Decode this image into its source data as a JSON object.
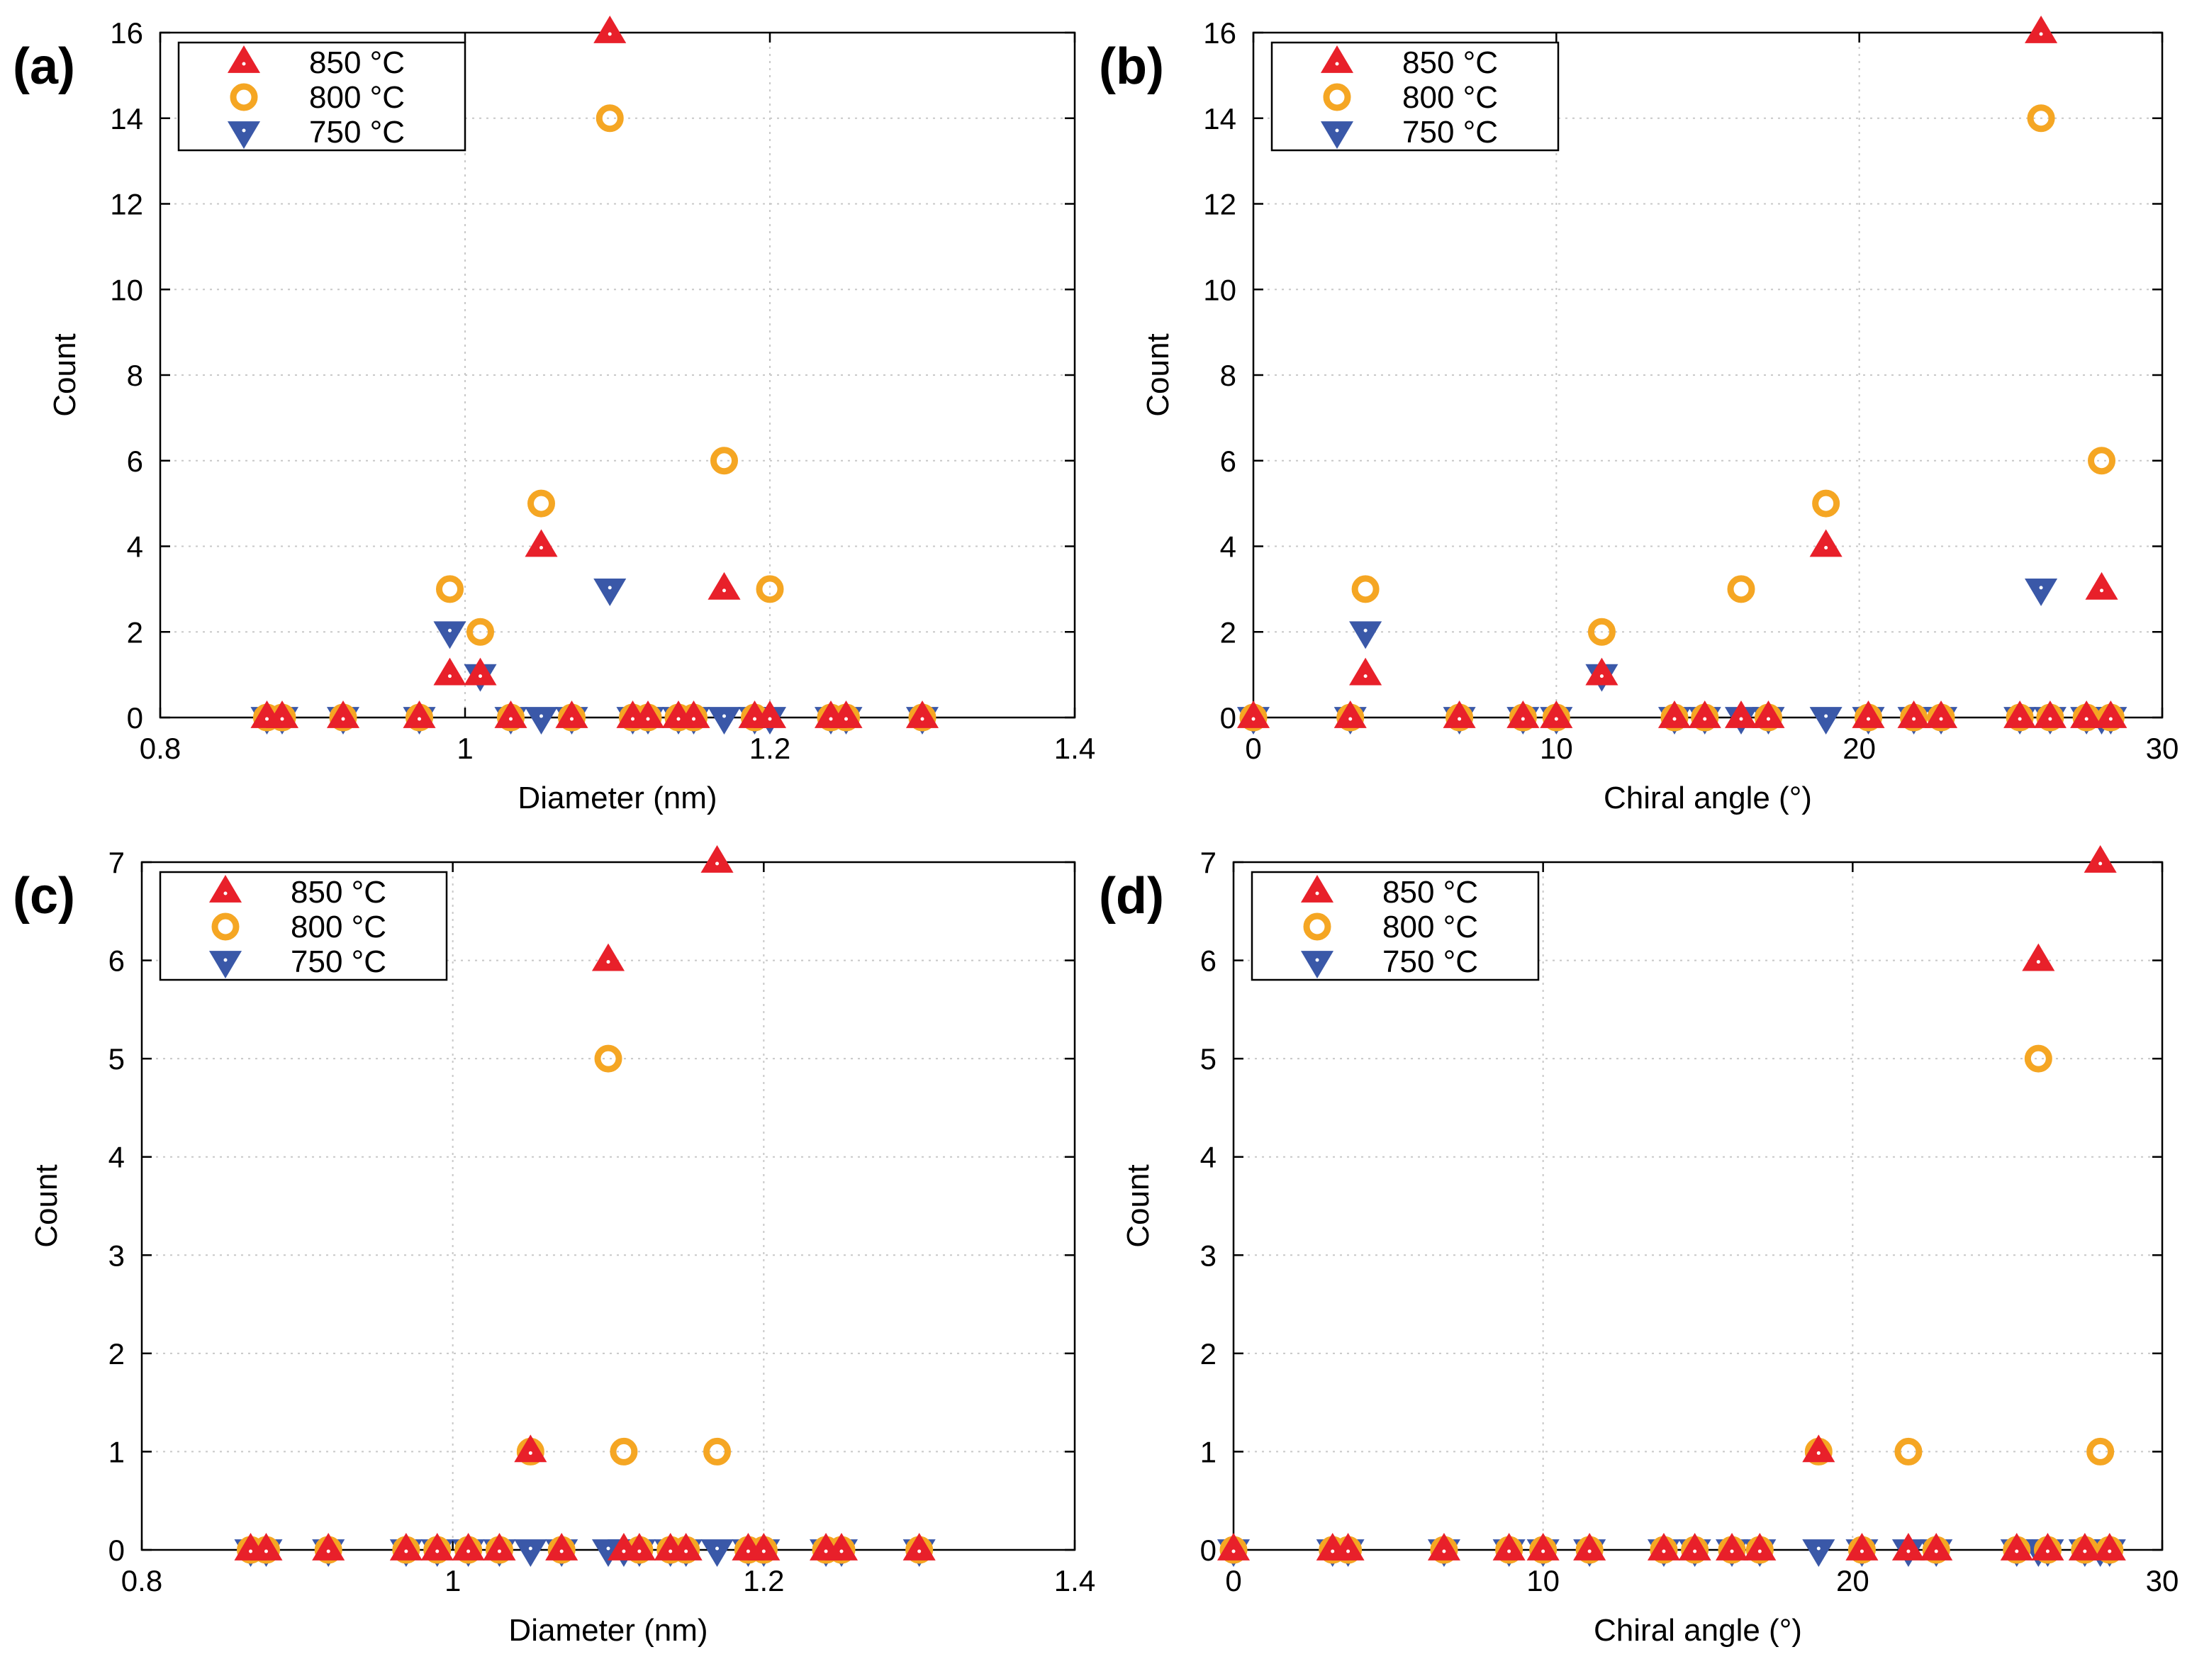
{
  "figure": {
    "colors": {
      "s850": "#e8202a",
      "s800": "#f5a623",
      "s750": "#3a58a8",
      "grid": "#c8c8c8",
      "frame": "#000000"
    }
  },
  "chart_data": [
    {
      "type": "scatter",
      "panel_label": "(a)",
      "xlabel": "Diameter (nm)",
      "ylabel": "Count",
      "xlim": [
        0.8,
        1.4
      ],
      "ylim": [
        0,
        16
      ],
      "xticks": [
        0.8,
        1,
        1.2,
        1.4
      ],
      "xtick_labels": [
        "0.8",
        "1",
        "1.2",
        "1.4"
      ],
      "yticks": [
        0,
        2,
        4,
        6,
        8,
        10,
        12,
        14,
        16
      ],
      "ytick_labels": [
        "0",
        "2",
        "4",
        "6",
        "8",
        "10",
        "12",
        "14",
        "16"
      ],
      "legend": [
        "850 °C",
        "800 °C",
        "750 °C"
      ],
      "legend_position": "top-left",
      "series": [
        {
          "name": "850 °C",
          "marker": "triangle-up",
          "x": [
            0.87,
            0.88,
            0.92,
            0.97,
            0.99,
            1.01,
            1.03,
            1.05,
            1.07,
            1.095,
            1.11,
            1.12,
            1.14,
            1.15,
            1.17,
            1.19,
            1.2,
            1.24,
            1.25,
            1.3
          ],
          "y": [
            0,
            0,
            0,
            0,
            1,
            1,
            0,
            4,
            0,
            16,
            0,
            0,
            0,
            0,
            3,
            0,
            0,
            0,
            0,
            0
          ]
        },
        {
          "name": "800 °C",
          "marker": "circle",
          "x": [
            0.87,
            0.88,
            0.92,
            0.97,
            0.99,
            1.01,
            1.03,
            1.05,
            1.07,
            1.095,
            1.11,
            1.12,
            1.14,
            1.15,
            1.17,
            1.19,
            1.2,
            1.24,
            1.25,
            1.3
          ],
          "y": [
            0,
            0,
            0,
            0,
            3,
            2,
            0,
            5,
            0,
            14,
            0,
            0,
            0,
            0,
            6,
            0,
            3,
            0,
            0,
            0
          ]
        },
        {
          "name": "750 °C",
          "marker": "triangle-down",
          "x": [
            0.87,
            0.88,
            0.92,
            0.97,
            0.99,
            1.01,
            1.03,
            1.05,
            1.07,
            1.095,
            1.11,
            1.12,
            1.14,
            1.15,
            1.17,
            1.19,
            1.2,
            1.24,
            1.25,
            1.3
          ],
          "y": [
            0,
            0,
            0,
            0,
            2,
            1,
            0,
            0,
            0,
            3,
            0,
            0,
            0,
            0,
            0,
            0,
            0,
            0,
            0,
            0
          ]
        }
      ]
    },
    {
      "type": "scatter",
      "panel_label": "(b)",
      "xlabel": "Chiral angle (°)",
      "ylabel": "Count",
      "xlim": [
        0,
        30
      ],
      "ylim": [
        0,
        16
      ],
      "xticks": [
        0,
        10,
        20,
        30
      ],
      "xtick_labels": [
        "0",
        "10",
        "20",
        "30"
      ],
      "yticks": [
        0,
        2,
        4,
        6,
        8,
        10,
        12,
        14,
        16
      ],
      "ytick_labels": [
        "0",
        "2",
        "4",
        "6",
        "8",
        "10",
        "12",
        "14",
        "16"
      ],
      "legend": [
        "850 °C",
        "800 °C",
        "750 °C"
      ],
      "legend_position": "top-left",
      "series": [
        {
          "name": "850 °C",
          "marker": "triangle-up",
          "x": [
            0,
            3.2,
            3.7,
            6.8,
            8.9,
            10,
            11.5,
            13.9,
            14.9,
            16.1,
            17.0,
            18.9,
            20.3,
            21.8,
            22.7,
            25.3,
            26.0,
            26.3,
            27.5,
            28.0,
            28.3
          ],
          "y": [
            0,
            0,
            1,
            0,
            0,
            0,
            1,
            0,
            0,
            0,
            0,
            4,
            0,
            0,
            0,
            0,
            16,
            0,
            0,
            3,
            0
          ]
        },
        {
          "name": "800 °C",
          "marker": "circle",
          "x": [
            0,
            3.2,
            3.7,
            6.8,
            8.9,
            10,
            11.5,
            13.9,
            14.9,
            16.1,
            17.0,
            18.9,
            20.3,
            21.8,
            22.7,
            25.3,
            26.0,
            26.3,
            27.5,
            28.0,
            28.3
          ],
          "y": [
            0,
            0,
            3,
            0,
            0,
            0,
            2,
            0,
            0,
            3,
            0,
            5,
            0,
            0,
            0,
            0,
            14,
            0,
            0,
            6,
            0
          ]
        },
        {
          "name": "750 °C",
          "marker": "triangle-down",
          "x": [
            0,
            3.2,
            3.7,
            6.8,
            8.9,
            10,
            11.5,
            13.9,
            14.9,
            16.1,
            17.0,
            18.9,
            20.3,
            21.8,
            22.7,
            25.3,
            26.0,
            26.3,
            27.5,
            28.0,
            28.3
          ],
          "y": [
            0,
            0,
            2,
            0,
            0,
            0,
            1,
            0,
            0,
            0,
            0,
            0,
            0,
            0,
            0,
            0,
            3,
            0,
            0,
            0,
            0
          ]
        }
      ]
    },
    {
      "type": "scatter",
      "panel_label": "(c)",
      "xlabel": "Diameter (nm)",
      "ylabel": "Count",
      "xlim": [
        0.8,
        1.4
      ],
      "ylim": [
        0,
        7
      ],
      "xticks": [
        0.8,
        1,
        1.2,
        1.4
      ],
      "xtick_labels": [
        "0.8",
        "1",
        "1.2",
        "1.4"
      ],
      "yticks": [
        0,
        1,
        2,
        3,
        4,
        5,
        6,
        7
      ],
      "ytick_labels": [
        "0",
        "1",
        "2",
        "3",
        "4",
        "5",
        "6",
        "7"
      ],
      "legend": [
        "850 °C",
        "800 °C",
        "750 °C"
      ],
      "legend_position": "top-left",
      "series": [
        {
          "name": "850 °C",
          "marker": "triangle-up",
          "x": [
            0.87,
            0.88,
            0.92,
            0.97,
            0.99,
            1.01,
            1.03,
            1.05,
            1.07,
            1.1,
            1.11,
            1.12,
            1.14,
            1.15,
            1.17,
            1.19,
            1.2,
            1.24,
            1.25,
            1.3
          ],
          "y": [
            0,
            0,
            0,
            0,
            0,
            0,
            0,
            1,
            0,
            6,
            0,
            0,
            0,
            0,
            7,
            0,
            0,
            0,
            0,
            0
          ]
        },
        {
          "name": "800 °C",
          "marker": "circle",
          "x": [
            0.87,
            0.88,
            0.92,
            0.97,
            0.99,
            1.01,
            1.03,
            1.05,
            1.07,
            1.1,
            1.11,
            1.12,
            1.14,
            1.15,
            1.17,
            1.19,
            1.2,
            1.24,
            1.25,
            1.3
          ],
          "y": [
            0,
            0,
            0,
            0,
            0,
            0,
            0,
            1,
            0,
            5,
            1,
            0,
            0,
            0,
            1,
            0,
            0,
            0,
            0,
            0
          ]
        },
        {
          "name": "750 °C",
          "marker": "triangle-down",
          "x": [
            0.87,
            0.88,
            0.92,
            0.97,
            0.99,
            1.01,
            1.03,
            1.05,
            1.07,
            1.1,
            1.11,
            1.12,
            1.14,
            1.15,
            1.17,
            1.19,
            1.2,
            1.24,
            1.25,
            1.3
          ],
          "y": [
            0,
            0,
            0,
            0,
            0,
            0,
            0,
            0,
            0,
            0,
            0,
            0,
            0,
            0,
            0,
            0,
            0,
            0,
            0,
            0
          ]
        }
      ]
    },
    {
      "type": "scatter",
      "panel_label": "(d)",
      "xlabel": "Chiral angle (°)",
      "ylabel": "Count",
      "xlim": [
        0,
        30
      ],
      "ylim": [
        0,
        7
      ],
      "xticks": [
        0,
        10,
        20,
        30
      ],
      "xtick_labels": [
        "0",
        "10",
        "20",
        "30"
      ],
      "yticks": [
        0,
        1,
        2,
        3,
        4,
        5,
        6,
        7
      ],
      "ytick_labels": [
        "0",
        "1",
        "2",
        "3",
        "4",
        "5",
        "6",
        "7"
      ],
      "legend": [
        "850 °C",
        "800 °C",
        "750 °C"
      ],
      "legend_position": "top-left",
      "series": [
        {
          "name": "850 °C",
          "marker": "triangle-up",
          "x": [
            0,
            3.2,
            3.7,
            6.8,
            8.9,
            10,
            11.5,
            13.9,
            14.9,
            16.1,
            17.0,
            18.9,
            20.3,
            21.8,
            22.7,
            25.3,
            26.0,
            26.3,
            27.5,
            28.0,
            28.3
          ],
          "y": [
            0,
            0,
            0,
            0,
            0,
            0,
            0,
            0,
            0,
            0,
            0,
            1,
            0,
            0,
            0,
            0,
            6,
            0,
            0,
            7,
            0
          ]
        },
        {
          "name": "800 °C",
          "marker": "circle",
          "x": [
            0,
            3.2,
            3.7,
            6.8,
            8.9,
            10,
            11.5,
            13.9,
            14.9,
            16.1,
            17.0,
            18.9,
            20.3,
            21.8,
            22.7,
            25.3,
            26.0,
            26.3,
            27.5,
            28.0,
            28.3
          ],
          "y": [
            0,
            0,
            0,
            0,
            0,
            0,
            0,
            0,
            0,
            0,
            0,
            1,
            0,
            1,
            0,
            0,
            5,
            0,
            0,
            1,
            0
          ]
        },
        {
          "name": "750 °C",
          "marker": "triangle-down",
          "x": [
            0,
            3.2,
            3.7,
            6.8,
            8.9,
            10,
            11.5,
            13.9,
            14.9,
            16.1,
            17.0,
            18.9,
            20.3,
            21.8,
            22.7,
            25.3,
            26.0,
            26.3,
            27.5,
            28.0,
            28.3
          ],
          "y": [
            0,
            0,
            0,
            0,
            0,
            0,
            0,
            0,
            0,
            0,
            0,
            0,
            0,
            0,
            0,
            0,
            0,
            0,
            0,
            0,
            0
          ]
        }
      ]
    }
  ]
}
